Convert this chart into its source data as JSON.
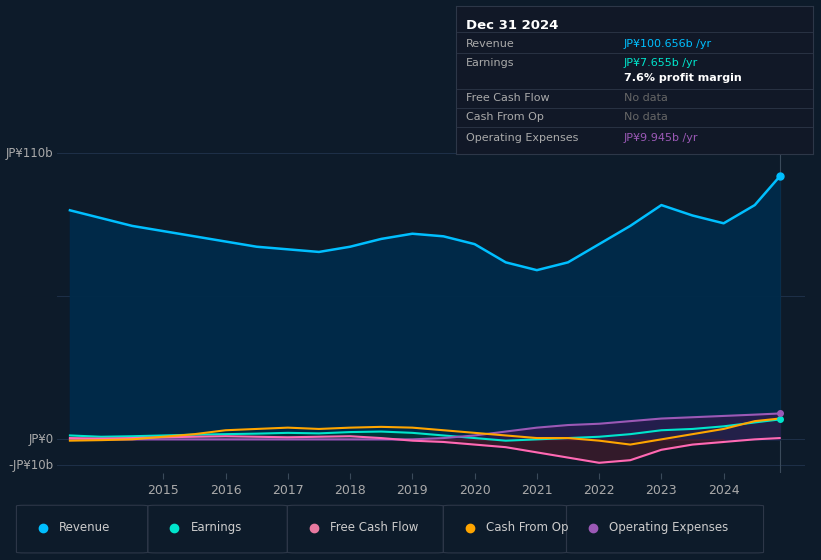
{
  "background_color": "#0d1b2a",
  "plot_bg_color": "#0d1b2a",
  "title": "Dec 31 2024",
  "y_label_top": "JP¥110b",
  "y_label_zero": "JP¥0",
  "y_label_bottom": "-JP¥10b",
  "x_ticks": [
    2015,
    2016,
    2017,
    2018,
    2019,
    2020,
    2021,
    2022,
    2023,
    2024
  ],
  "ylim": [
    -13,
    115
  ],
  "series": {
    "Revenue": {
      "color": "#00bfff",
      "fill_color": "#002a4a",
      "values": [
        [
          2013.5,
          88
        ],
        [
          2014.0,
          85
        ],
        [
          2014.5,
          82
        ],
        [
          2015.0,
          80
        ],
        [
          2015.5,
          78
        ],
        [
          2016.0,
          76
        ],
        [
          2016.5,
          74
        ],
        [
          2017.0,
          73
        ],
        [
          2017.5,
          72
        ],
        [
          2018.0,
          74
        ],
        [
          2018.5,
          77
        ],
        [
          2019.0,
          79
        ],
        [
          2019.5,
          78
        ],
        [
          2020.0,
          75
        ],
        [
          2020.5,
          68
        ],
        [
          2021.0,
          65
        ],
        [
          2021.5,
          68
        ],
        [
          2022.0,
          75
        ],
        [
          2022.5,
          82
        ],
        [
          2023.0,
          90
        ],
        [
          2023.5,
          86
        ],
        [
          2024.0,
          83
        ],
        [
          2024.5,
          90
        ],
        [
          2024.9,
          101
        ]
      ]
    },
    "Earnings": {
      "color": "#00e5cc",
      "fill_color": "#003a32",
      "values": [
        [
          2013.5,
          1.5
        ],
        [
          2014.0,
          1.0
        ],
        [
          2014.5,
          1.2
        ],
        [
          2015.0,
          1.5
        ],
        [
          2015.5,
          1.8
        ],
        [
          2016.0,
          2.0
        ],
        [
          2016.5,
          2.2
        ],
        [
          2017.0,
          2.5
        ],
        [
          2017.5,
          2.3
        ],
        [
          2018.0,
          2.8
        ],
        [
          2018.5,
          3.0
        ],
        [
          2019.0,
          2.5
        ],
        [
          2019.5,
          1.5
        ],
        [
          2020.0,
          0.5
        ],
        [
          2020.5,
          -0.5
        ],
        [
          2021.0,
          0.0
        ],
        [
          2021.5,
          0.5
        ],
        [
          2022.0,
          1.0
        ],
        [
          2022.5,
          2.0
        ],
        [
          2023.0,
          3.5
        ],
        [
          2023.5,
          4.0
        ],
        [
          2024.0,
          5.0
        ],
        [
          2024.5,
          6.5
        ],
        [
          2024.9,
          7.655
        ]
      ]
    },
    "Free Cash Flow": {
      "color": "#ff69b4",
      "values": [
        [
          2013.5,
          0.5
        ],
        [
          2014.0,
          0.3
        ],
        [
          2014.5,
          0.5
        ],
        [
          2015.0,
          0.8
        ],
        [
          2015.5,
          1.0
        ],
        [
          2016.0,
          1.2
        ],
        [
          2016.5,
          1.0
        ],
        [
          2017.0,
          0.8
        ],
        [
          2017.5,
          1.0
        ],
        [
          2018.0,
          1.2
        ],
        [
          2018.5,
          0.5
        ],
        [
          2019.0,
          -0.5
        ],
        [
          2019.5,
          -1.0
        ],
        [
          2020.0,
          -2.0
        ],
        [
          2020.5,
          -3.0
        ],
        [
          2021.0,
          -5.0
        ],
        [
          2021.5,
          -7.0
        ],
        [
          2022.0,
          -9.0
        ],
        [
          2022.5,
          -8.0
        ],
        [
          2023.0,
          -4.0
        ],
        [
          2023.5,
          -2.0
        ],
        [
          2024.0,
          -1.0
        ],
        [
          2024.5,
          0.0
        ],
        [
          2024.9,
          0.5
        ]
      ]
    },
    "Cash From Op": {
      "color": "#ffa500",
      "values": [
        [
          2013.5,
          -0.5
        ],
        [
          2014.0,
          -0.3
        ],
        [
          2014.5,
          0.0
        ],
        [
          2015.0,
          1.0
        ],
        [
          2015.5,
          2.0
        ],
        [
          2016.0,
          3.5
        ],
        [
          2016.5,
          4.0
        ],
        [
          2017.0,
          4.5
        ],
        [
          2017.5,
          4.0
        ],
        [
          2018.0,
          4.5
        ],
        [
          2018.5,
          4.8
        ],
        [
          2019.0,
          4.5
        ],
        [
          2019.5,
          3.5
        ],
        [
          2020.0,
          2.5
        ],
        [
          2020.5,
          1.5
        ],
        [
          2021.0,
          0.5
        ],
        [
          2021.5,
          0.5
        ],
        [
          2022.0,
          -0.5
        ],
        [
          2022.5,
          -2.0
        ],
        [
          2023.0,
          0.0
        ],
        [
          2023.5,
          2.0
        ],
        [
          2024.0,
          4.0
        ],
        [
          2024.5,
          7.0
        ],
        [
          2024.9,
          8.0
        ]
      ]
    },
    "Operating Expenses": {
      "color": "#9b59b6",
      "fill_color": "#2d1b4e",
      "values": [
        [
          2013.5,
          0.0
        ],
        [
          2014.0,
          0.0
        ],
        [
          2014.5,
          0.0
        ],
        [
          2015.0,
          0.0
        ],
        [
          2015.5,
          0.0
        ],
        [
          2016.0,
          0.0
        ],
        [
          2016.5,
          0.0
        ],
        [
          2017.0,
          0.0
        ],
        [
          2017.5,
          0.0
        ],
        [
          2018.0,
          0.0
        ],
        [
          2018.5,
          0.0
        ],
        [
          2019.0,
          0.0
        ],
        [
          2019.5,
          0.5
        ],
        [
          2020.0,
          1.5
        ],
        [
          2020.5,
          3.0
        ],
        [
          2021.0,
          4.5
        ],
        [
          2021.5,
          5.5
        ],
        [
          2022.0,
          6.0
        ],
        [
          2022.5,
          7.0
        ],
        [
          2023.0,
          8.0
        ],
        [
          2023.5,
          8.5
        ],
        [
          2024.0,
          9.0
        ],
        [
          2024.5,
          9.5
        ],
        [
          2024.9,
          9.945
        ]
      ]
    }
  },
  "tooltip_title": "Dec 31 2024",
  "tooltip_rows": [
    {
      "label": "Revenue",
      "value": "JP¥100.656b /yr",
      "value_color": "#00bfff",
      "bold": false
    },
    {
      "label": "Earnings",
      "value": "JP¥7.655b /yr",
      "value_color": "#00e5cc",
      "bold": false
    },
    {
      "label": "",
      "value": "7.6% profit margin",
      "value_color": "#ffffff",
      "bold": true
    },
    {
      "label": "Free Cash Flow",
      "value": "No data",
      "value_color": "#666666",
      "bold": false
    },
    {
      "label": "Cash From Op",
      "value": "No data",
      "value_color": "#666666",
      "bold": false
    },
    {
      "label": "Operating Expenses",
      "value": "JP¥9.945b /yr",
      "value_color": "#9b59b6",
      "bold": false
    }
  ],
  "legend": [
    {
      "label": "Revenue",
      "color": "#00bfff"
    },
    {
      "label": "Earnings",
      "color": "#00e5cc"
    },
    {
      "label": "Free Cash Flow",
      "color": "#e879a0"
    },
    {
      "label": "Cash From Op",
      "color": "#ffa500"
    },
    {
      "label": "Operating Expenses",
      "color": "#9b59b6"
    }
  ]
}
